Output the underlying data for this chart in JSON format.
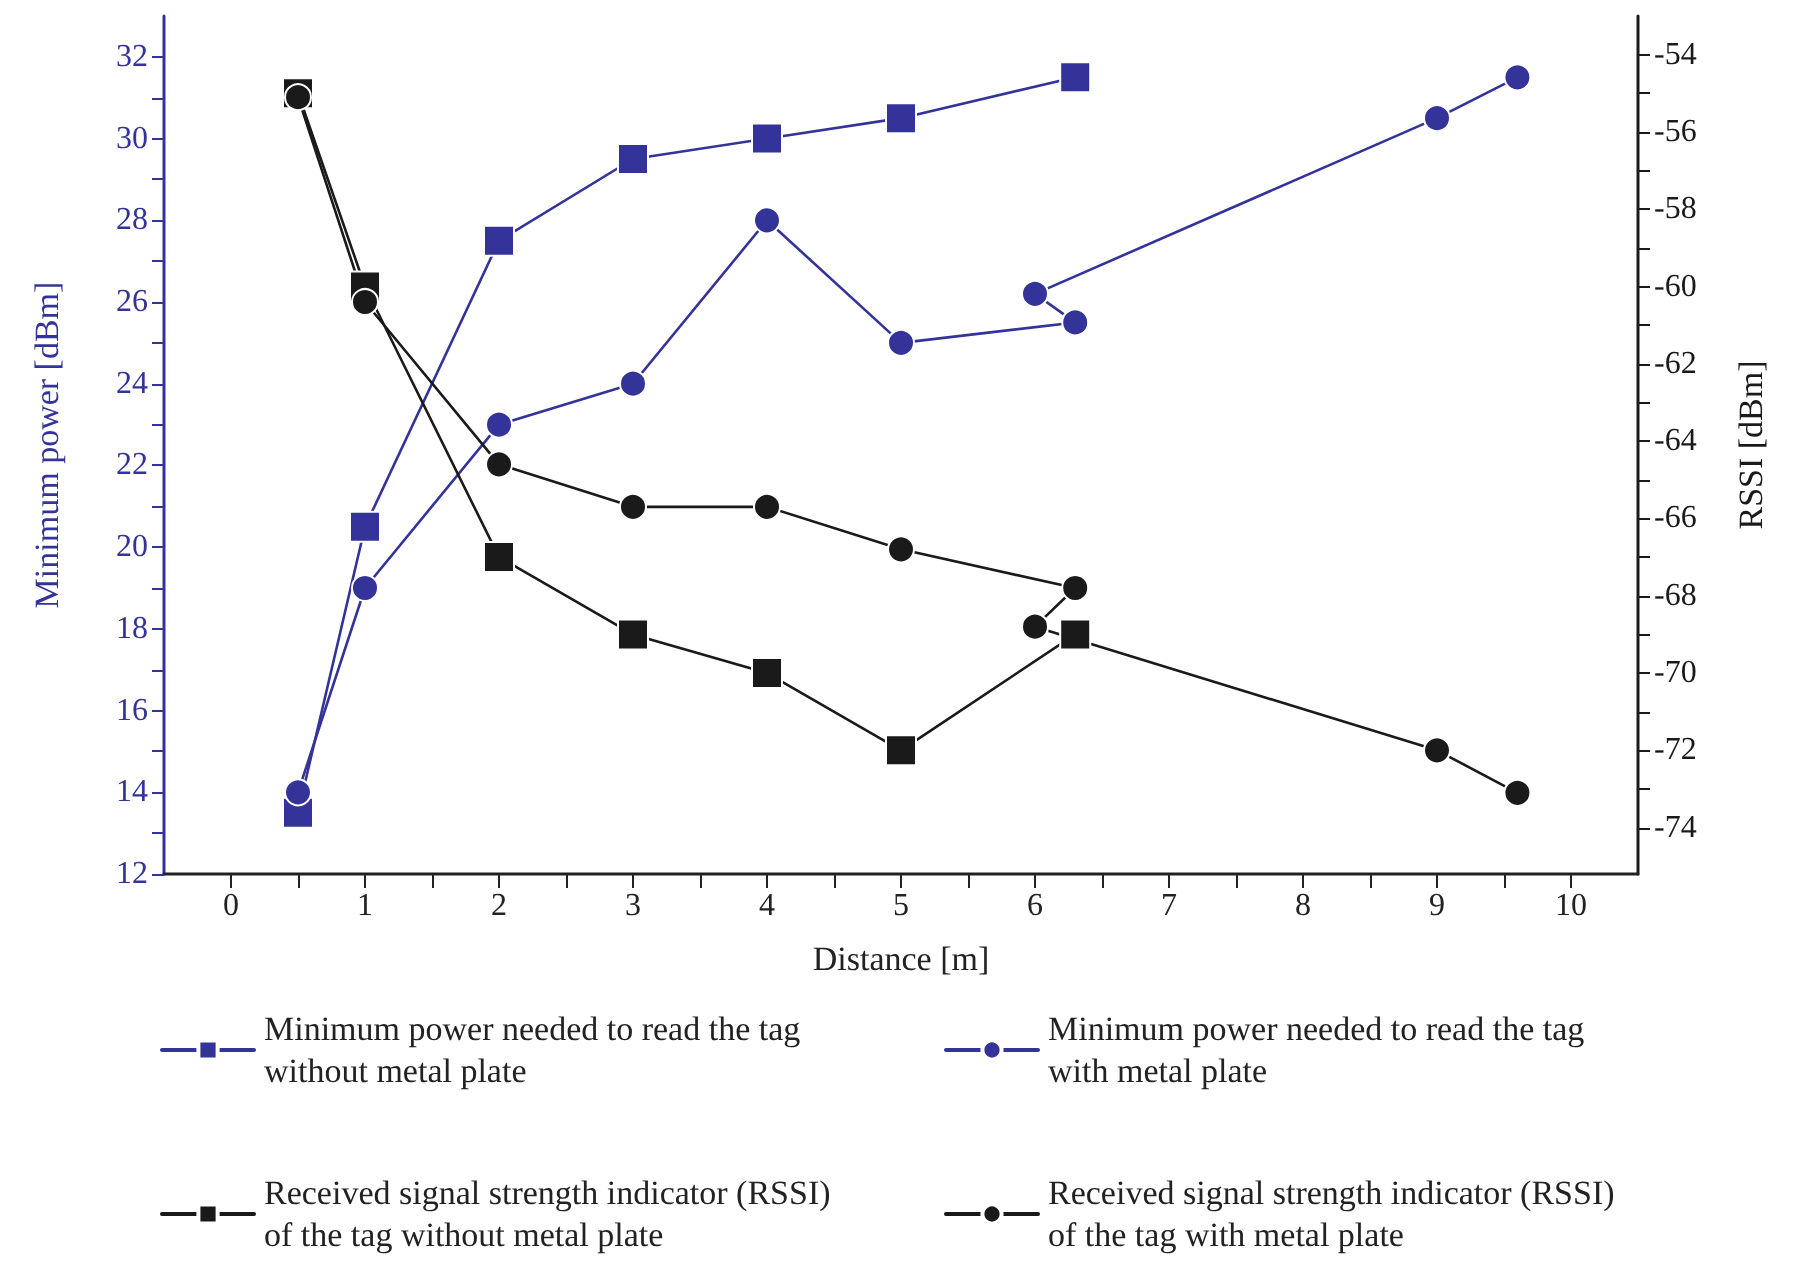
{
  "chart_data": {
    "type": "line",
    "xlabel": "Distance [m]",
    "ylabel": "Minimum power [dBm]",
    "y2label": "RSSI [dBm]",
    "xlim": [
      -0.5,
      10.5
    ],
    "xticks": [
      0,
      {
        "value": 0.5,
        "label": null
      },
      1,
      {
        "value": 1.5,
        "label": null
      },
      2,
      {
        "value": 2.5,
        "label": null
      },
      3,
      {
        "value": 3.5,
        "label": null
      },
      4,
      {
        "value": 4.5,
        "label": null
      },
      5,
      {
        "value": 5.5,
        "label": null
      },
      6,
      {
        "value": 6.5,
        "label": null
      },
      7,
      {
        "value": 7.5,
        "label": null
      },
      8,
      {
        "value": 8.5,
        "label": null
      },
      9,
      {
        "value": 9.5,
        "label": null
      },
      10
    ],
    "ylim": [
      12,
      33
    ],
    "yticks": [
      12,
      {
        "value": 13,
        "label": null
      },
      14,
      {
        "value": 15,
        "label": null
      },
      16,
      {
        "value": 17,
        "label": null
      },
      18,
      {
        "value": 19,
        "label": null
      },
      20,
      {
        "value": 21,
        "label": null
      },
      22,
      {
        "value": 23,
        "label": null
      },
      24,
      {
        "value": 25,
        "label": null
      },
      26,
      {
        "value": 27,
        "label": null
      },
      28,
      {
        "value": 29,
        "label": null
      },
      30,
      {
        "value": 31,
        "label": null
      },
      32
    ],
    "y2lim": [
      -75.2,
      -53
    ],
    "y2ticks": [
      -74,
      {
        "value": -73,
        "label": null
      },
      -72,
      {
        "value": -71,
        "label": null
      },
      -70,
      {
        "value": -69,
        "label": null
      },
      -68,
      {
        "value": -67,
        "label": null
      },
      -66,
      {
        "value": -65,
        "label": null
      },
      -64,
      {
        "value": -63,
        "label": null
      },
      -62,
      {
        "value": -61,
        "label": null
      },
      -60,
      {
        "value": -59,
        "label": null
      },
      -58,
      {
        "value": -57,
        "label": null
      },
      -56,
      {
        "value": -55,
        "label": null
      },
      -54
    ],
    "grid": false,
    "legend": "bottom",
    "line_style": "solid",
    "series": [
      {
        "name": "Minimum power needed to read the tag without metal plate",
        "color": "#333399",
        "marker": "square",
        "x": [
          0.5,
          1,
          2,
          3,
          4,
          5,
          6.3
        ],
        "values": [
          13.5,
          20.5,
          27.5,
          29.5,
          30,
          30.5,
          31.5
        ]
      },
      {
        "name": "Minimum power needed to read the tag with metal plate",
        "color": "#333399",
        "marker": "circle",
        "x": [
          0.5,
          1,
          2,
          3,
          4,
          5,
          6.3,
          6,
          9,
          9.6
        ],
        "values": [
          14,
          19,
          23,
          24,
          28,
          25,
          25.5,
          26.2,
          30.5,
          31.5
        ]
      },
      {
        "name": "Received signal strength indicator (RSSI) of the tag without metal plate",
        "color": "#1a1a1a",
        "marker": "square",
        "axis": "y2",
        "x": [
          0.5,
          1,
          2,
          3,
          4,
          5,
          6.3
        ],
        "values": [
          -55,
          -60,
          -67,
          -69,
          -70,
          -72,
          -69
        ]
      },
      {
        "name": "Received signal strength indicator (RSSI) of the tag with metal plate",
        "color": "#1a1a1a",
        "marker": "circle",
        "axis": "y2",
        "x": [
          0.5,
          1,
          2,
          3,
          4,
          5,
          6.3,
          6,
          9,
          9.6
        ],
        "values": [
          -55.1,
          -60.4,
          -64.6,
          -65.7,
          -65.7,
          -66.8,
          -67.8,
          -68.8,
          -72,
          -73.1
        ]
      }
    ]
  }
}
